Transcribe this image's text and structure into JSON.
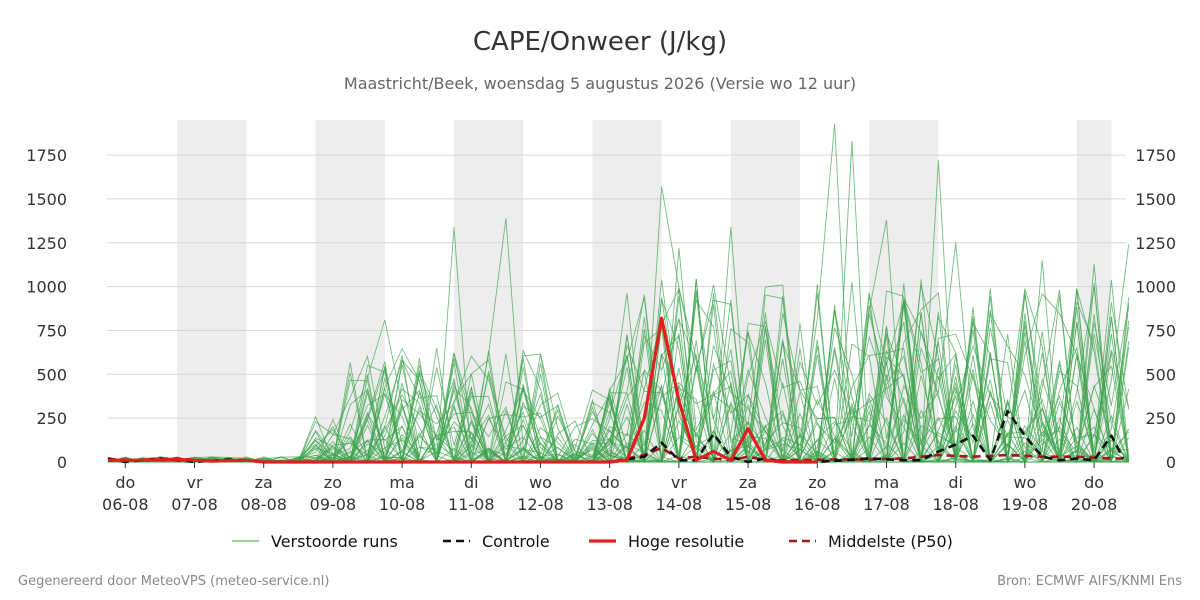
{
  "chart_data": {
    "type": "line",
    "title": "CAPE/Onweer (J/kg)",
    "subtitle": "Maastricht/Beek, woensdag  5 augustus 2026 (Versie wo 12 uur)",
    "ylim": [
      0,
      1950
    ],
    "yticks": [
      0,
      250,
      500,
      750,
      1000,
      1250,
      1500,
      1750
    ],
    "grid": true,
    "legend_position": "bottom",
    "x_day_start": 0,
    "x_day_end": 14.67,
    "weekend_shading": [
      [
        1,
        2
      ],
      [
        3,
        4
      ],
      [
        5,
        6
      ],
      [
        7,
        8
      ],
      [
        9,
        10
      ],
      [
        11,
        12
      ],
      [
        14,
        14.5
      ]
    ],
    "day_ticks": [
      {
        "x": 0.25,
        "weekday": "do",
        "date": "06-08"
      },
      {
        "x": 1.25,
        "weekday": "vr",
        "date": "07-08"
      },
      {
        "x": 2.25,
        "weekday": "za",
        "date": "08-08"
      },
      {
        "x": 3.25,
        "weekday": "zo",
        "date": "09-08"
      },
      {
        "x": 4.25,
        "weekday": "ma",
        "date": "10-08"
      },
      {
        "x": 5.25,
        "weekday": "di",
        "date": "11-08"
      },
      {
        "x": 6.25,
        "weekday": "wo",
        "date": "12-08"
      },
      {
        "x": 7.25,
        "weekday": "do",
        "date": "13-08"
      },
      {
        "x": 8.25,
        "weekday": "vr",
        "date": "14-08"
      },
      {
        "x": 9.25,
        "weekday": "za",
        "date": "15-08"
      },
      {
        "x": 10.25,
        "weekday": "zo",
        "date": "16-08"
      },
      {
        "x": 11.25,
        "weekday": "ma",
        "date": "17-08"
      },
      {
        "x": 12.25,
        "weekday": "di",
        "date": "18-08"
      },
      {
        "x": 13.25,
        "weekday": "wo",
        "date": "19-08"
      },
      {
        "x": 14.25,
        "weekday": "do",
        "date": "20-08"
      }
    ],
    "series": [
      {
        "name": "Controle",
        "style": "dashed",
        "color": "#111111",
        "points": [
          [
            0,
            20
          ],
          [
            0.25,
            0
          ],
          [
            0.75,
            20
          ],
          [
            1.25,
            0
          ],
          [
            1.75,
            15
          ],
          [
            2.25,
            0
          ],
          [
            3.25,
            0
          ],
          [
            4.25,
            0
          ],
          [
            5.25,
            0
          ],
          [
            6.25,
            0
          ],
          [
            7.25,
            0
          ],
          [
            7.75,
            30
          ],
          [
            8,
            110
          ],
          [
            8.25,
            10
          ],
          [
            8.5,
            10
          ],
          [
            8.75,
            160
          ],
          [
            9,
            30
          ],
          [
            9.25,
            0
          ],
          [
            9.5,
            20
          ],
          [
            9.75,
            0
          ],
          [
            10.25,
            0
          ],
          [
            11,
            20
          ],
          [
            11.5,
            10
          ],
          [
            11.75,
            10
          ],
          [
            12,
            60
          ],
          [
            12.25,
            100
          ],
          [
            12.5,
            150
          ],
          [
            12.75,
            10
          ],
          [
            13,
            290
          ],
          [
            13.25,
            150
          ],
          [
            13.5,
            30
          ],
          [
            13.75,
            10
          ],
          [
            14,
            20
          ],
          [
            14.25,
            10
          ],
          [
            14.5,
            150
          ],
          [
            14.67,
            20
          ]
        ]
      },
      {
        "name": "Hoge resolutie",
        "style": "solid-thick",
        "color": "#e0201c",
        "points": [
          [
            0,
            10
          ],
          [
            0.5,
            10
          ],
          [
            1,
            15
          ],
          [
            1.5,
            5
          ],
          [
            2,
            10
          ],
          [
            2.25,
            0
          ],
          [
            3.25,
            0
          ],
          [
            4.25,
            0
          ],
          [
            5.25,
            0
          ],
          [
            6.25,
            0
          ],
          [
            7.25,
            0
          ],
          [
            7.5,
            10
          ],
          [
            7.75,
            250
          ],
          [
            8,
            820
          ],
          [
            8.25,
            350
          ],
          [
            8.5,
            10
          ],
          [
            8.75,
            60
          ],
          [
            9,
            10
          ],
          [
            9.25,
            190
          ],
          [
            9.5,
            10
          ],
          [
            9.75,
            0
          ],
          [
            10.25,
            0
          ]
        ]
      },
      {
        "name": "Middelste (P50)",
        "style": "dashed",
        "color": "#9e1b1b",
        "points": [
          [
            0,
            15
          ],
          [
            0.5,
            10
          ],
          [
            1,
            20
          ],
          [
            1.5,
            5
          ],
          [
            2,
            10
          ],
          [
            2.25,
            0
          ],
          [
            3.25,
            0
          ],
          [
            4.25,
            0
          ],
          [
            5.25,
            0
          ],
          [
            6.25,
            0
          ],
          [
            7.25,
            0
          ],
          [
            7.75,
            40
          ],
          [
            8,
            80
          ],
          [
            8.25,
            20
          ],
          [
            8.5,
            30
          ],
          [
            8.75,
            20
          ],
          [
            9,
            10
          ],
          [
            9.25,
            30
          ],
          [
            9.5,
            10
          ],
          [
            10,
            10
          ],
          [
            10.5,
            15
          ],
          [
            11,
            15
          ],
          [
            11.5,
            20
          ],
          [
            12,
            40
          ],
          [
            12.5,
            30
          ],
          [
            13,
            40
          ],
          [
            13.5,
            30
          ],
          [
            14,
            30
          ],
          [
            14.5,
            20
          ],
          [
            14.67,
            20
          ]
        ]
      }
    ],
    "ensemble": {
      "name": "Verstoorde runs",
      "color": "#3aa34a",
      "member_count": 40,
      "notable_peaks": [
        [
          4,
          810
        ],
        [
          5,
          1340
        ],
        [
          5.75,
          1390
        ],
        [
          8,
          1570
        ],
        [
          8.25,
          1220
        ],
        [
          9,
          1340
        ],
        [
          10.5,
          1930
        ],
        [
          10.75,
          1830
        ],
        [
          11.25,
          1380
        ],
        [
          12,
          1720
        ],
        [
          12.25,
          1250
        ],
        [
          13.5,
          1150
        ],
        [
          14,
          980
        ],
        [
          14.25,
          1130
        ],
        [
          14.67,
          1240
        ]
      ]
    },
    "legend": [
      {
        "label": "Verstoorde runs",
        "style": "thin",
        "color": "#3aa34a"
      },
      {
        "label": "Controle",
        "style": "dashed",
        "color": "#111111"
      },
      {
        "label": "Hoge resolutie",
        "style": "solid-thick",
        "color": "#e0201c"
      },
      {
        "label": "Middelste (P50)",
        "style": "dashed",
        "color": "#9e1b1b"
      }
    ]
  },
  "footer": {
    "left": "Gegenereerd door MeteoVPS (meteo-service.nl)",
    "right": "Bron: ECMWF AIFS/KNMI Ens"
  }
}
